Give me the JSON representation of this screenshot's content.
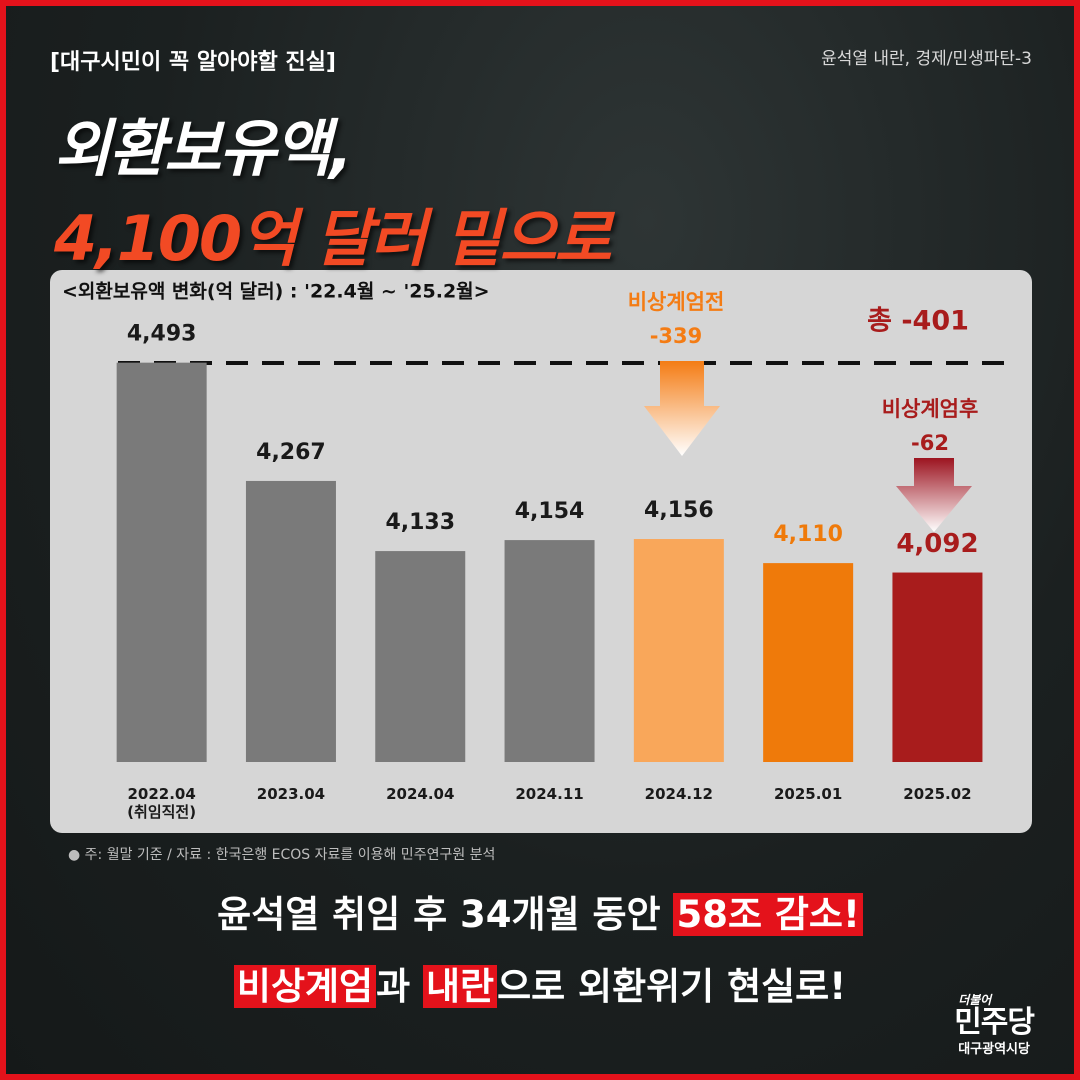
{
  "header": {
    "tag": "[대구시민이 꼭 알아야할 진실]",
    "series_label": "윤석열 내란, 경제/민생파탄-3",
    "title_line1": "외환보유액,",
    "title_line2": "4,100억 달러 밑으로"
  },
  "chart_data": {
    "type": "bar",
    "title": "<외환보유액 변화(억 달러) : '22.4월 ~ '25.2월>",
    "categories": [
      "2022.04\n(취임직전)",
      "2023.04",
      "2024.04",
      "2024.11",
      "2024.12",
      "2025.01",
      "2025.02"
    ],
    "values": [
      4493,
      4267,
      4133,
      4154,
      4156,
      4110,
      4092
    ],
    "value_labels": [
      "4,493",
      "4,267",
      "4,133",
      "4,154",
      "4,156",
      "4,110",
      "4,092"
    ],
    "colors": [
      "#7a7a7a",
      "#7a7a7a",
      "#7a7a7a",
      "#7a7a7a",
      "#f9a75a",
      "#ef7a0a",
      "#a81c1c"
    ],
    "label_colors": [
      "#1a1a1a",
      "#1a1a1a",
      "#1a1a1a",
      "#1a1a1a",
      "#1a1a1a",
      "#ef7a0a",
      "#a81c1c"
    ],
    "ylim": [
      3730,
      4500
    ],
    "annotations": {
      "total": "총 -401",
      "before_label": "비상계엄전",
      "before_value": "-339",
      "after_label": "비상계엄후",
      "after_value": "-62"
    },
    "footnote": "주: 월말 기준 / 자료 : 한국은행 ECOS 자료를 이용해 민주연구원 분석"
  },
  "footer": {
    "line1_a": "윤석열 취임 후 34개월 동안 ",
    "line1_hl": "58조 감소!",
    "line2_hl1": "비상계엄",
    "line2_b": "과 ",
    "line2_hl2": "내란",
    "line2_c": "으로 외환위기 현실로!"
  },
  "logo": {
    "top": "더불어",
    "main": "민주당",
    "sub": "대구광역시당"
  }
}
